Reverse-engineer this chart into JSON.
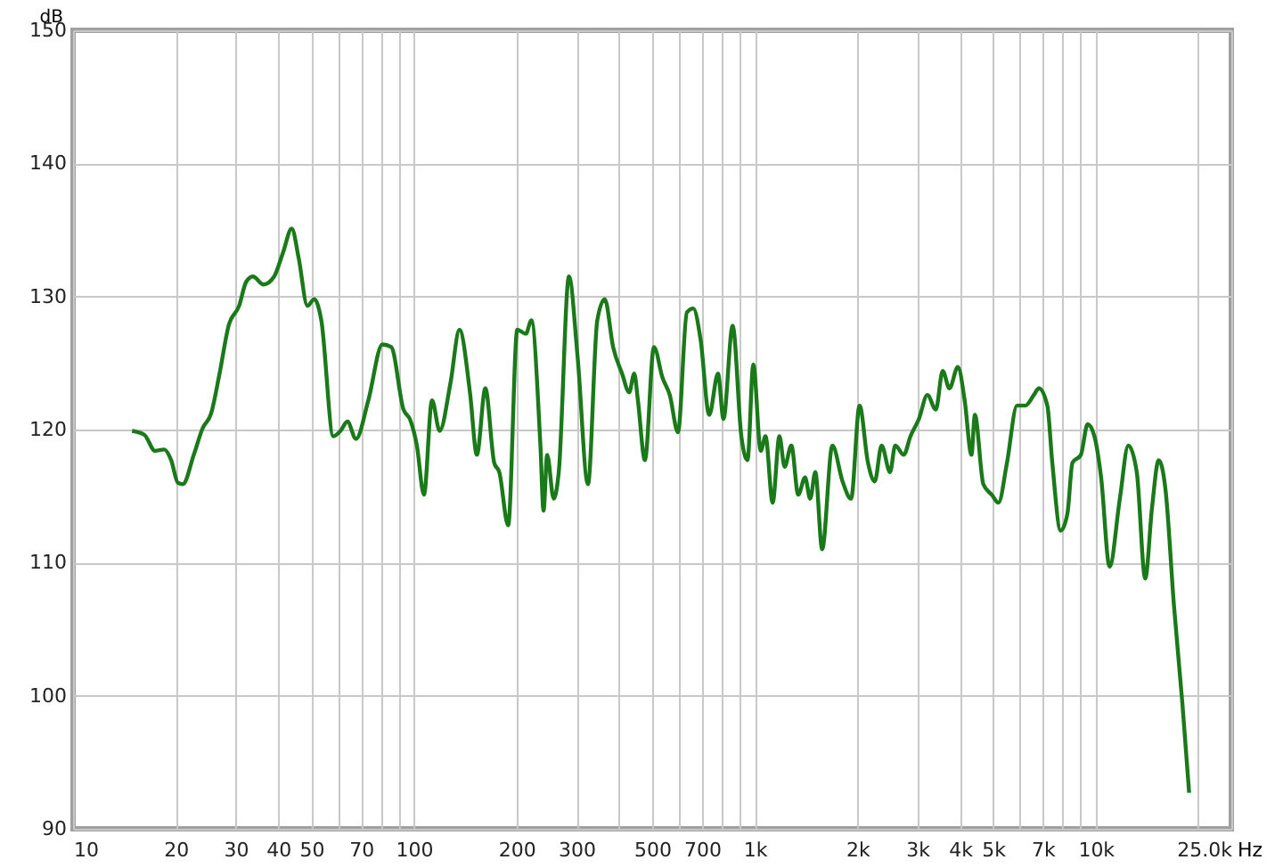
{
  "chart_data": {
    "type": "line",
    "xlabel": "Hz",
    "ylabel": "dB",
    "log": "x",
    "grid": true,
    "xlim": [
      10,
      25000
    ],
    "ylim": [
      90,
      150
    ],
    "xticks": [
      10,
      20,
      30,
      40,
      50,
      {
        "value": 60,
        "label": null
      },
      70,
      {
        "value": 80,
        "label": null
      },
      {
        "value": 90,
        "label": null
      },
      100,
      200,
      300,
      {
        "value": 400,
        "label": null
      },
      500,
      {
        "value": 600,
        "label": null
      },
      700,
      {
        "value": 800,
        "label": null
      },
      {
        "value": 900,
        "label": null
      },
      {
        "value": 1000,
        "label": "1k"
      },
      {
        "value": 2000,
        "label": "2k"
      },
      {
        "value": 3000,
        "label": "3k"
      },
      {
        "value": 4000,
        "label": "4k"
      },
      {
        "value": 5000,
        "label": "5k"
      },
      {
        "value": 6000,
        "label": null
      },
      {
        "value": 7000,
        "label": "7k"
      },
      {
        "value": 8000,
        "label": null
      },
      {
        "value": 9000,
        "label": null
      },
      {
        "value": 10000,
        "label": "10k"
      },
      {
        "value": 20000,
        "label": null
      },
      {
        "value": 25000,
        "label": "25.0k"
      }
    ],
    "yticks": [
      90,
      100,
      110,
      120,
      130,
      140,
      150
    ],
    "x": [
      14.9,
      16.2,
      17.4,
      18.5,
      19.4,
      20.3,
      21.0,
      22.6,
      24.0,
      25.4,
      26.9,
      28.6,
      30.7,
      32.2,
      33.7,
      36.2,
      38.9,
      41.3,
      43.8,
      45.9,
      48.7,
      51.0,
      53.5,
      58.0,
      60.9,
      63.8,
      67.6,
      73.5,
      80.8,
      85.8,
      93.2,
      97.6,
      102,
      107,
      113,
      119,
      128,
      136,
      146,
      153,
      162,
      172,
      178,
      189,
      201,
      213,
      221,
      235,
      240,
      246,
      257,
      266,
      285,
      302,
      324,
      345,
      363,
      384,
      408,
      428,
      443,
      454,
      476,
      506,
      536,
      563,
      595,
      632,
      660,
      693,
      735,
      780,
      809,
      861,
      913,
      952,
      990,
      1041,
      1075,
      1128,
      1181,
      1223,
      1280,
      1341,
      1404,
      1454,
      1505,
      1576,
      1689,
      1809,
      1916,
      2029,
      2148,
      2248,
      2355,
      2493,
      2582,
      2734,
      2862,
      3030,
      3208,
      3397,
      3557,
      3724,
      3943,
      4127,
      4321,
      4422,
      4681,
      4956,
      5187,
      5492,
      5878,
      6222,
      6587,
      6812,
      7214,
      7460,
      7896,
      8264,
      8548,
      9049,
      9470,
      9912,
      10374,
      10985,
      11773,
      12466,
      13200,
      13977,
      14628,
      15310,
      16024,
      16966,
      17964,
      18802
    ],
    "series": [
      {
        "color": "#1a7a1a",
        "values": [
          119.9,
          119.6,
          118.4,
          118.5,
          117.7,
          116.0,
          115.9,
          118.1,
          120.1,
          121.2,
          124.2,
          127.8,
          129.3,
          131.1,
          131.5,
          130.9,
          131.5,
          133.3,
          135.1,
          132.9,
          129.3,
          129.8,
          128.2,
          119.5,
          119.9,
          120.6,
          119.3,
          122.2,
          126.4,
          126.2,
          121.5,
          120.7,
          118.8,
          115.1,
          122.2,
          119.9,
          123.5,
          127.5,
          122.8,
          118.1,
          123.1,
          117.5,
          116.8,
          112.8,
          127.5,
          127.2,
          128.2,
          118.8,
          113.9,
          118.1,
          114.8,
          116.8,
          131.5,
          125.5,
          115.9,
          128.2,
          129.8,
          126.2,
          124.2,
          122.8,
          124.2,
          122.2,
          117.7,
          126.2,
          123.9,
          122.6,
          119.8,
          128.8,
          129.1,
          126.8,
          121.1,
          124.2,
          120.8,
          127.8,
          119.5,
          117.7,
          124.9,
          118.4,
          119.5,
          114.5,
          119.5,
          117.2,
          118.8,
          115.1,
          116.4,
          114.8,
          116.8,
          111.0,
          118.8,
          116.1,
          114.8,
          121.8,
          117.5,
          116.1,
          118.8,
          116.8,
          118.8,
          118.1,
          119.5,
          120.8,
          122.6,
          121.5,
          124.4,
          123.1,
          124.7,
          122.2,
          118.1,
          121.1,
          115.9,
          115.1,
          114.5,
          117.5,
          121.8,
          121.8,
          122.6,
          123.1,
          121.8,
          117.5,
          112.4,
          113.7,
          117.5,
          118.1,
          120.4,
          119.5,
          116.4,
          109.7,
          114.8,
          118.8,
          116.8,
          108.8,
          114.1,
          117.7,
          115.5,
          106.8,
          99.4,
          92.7
        ]
      }
    ]
  }
}
